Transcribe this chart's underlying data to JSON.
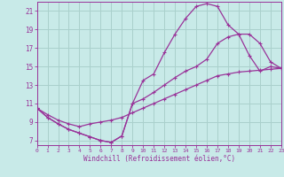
{
  "xlabel": "Windchill (Refroidissement éolien,°C)",
  "bg_color": "#c8eae8",
  "grid_color": "#aad0cc",
  "line_color": "#993399",
  "xlim": [
    0,
    23
  ],
  "ylim": [
    6.5,
    22
  ],
  "xticks": [
    0,
    1,
    2,
    3,
    4,
    5,
    6,
    7,
    8,
    9,
    10,
    11,
    12,
    13,
    14,
    15,
    16,
    17,
    18,
    19,
    20,
    21,
    22,
    23
  ],
  "yticks": [
    7,
    9,
    11,
    13,
    15,
    17,
    19,
    21
  ],
  "curve1_x": [
    0,
    1,
    2,
    3,
    4,
    5,
    6,
    7,
    8,
    9,
    10,
    11,
    12,
    13,
    14,
    15,
    16,
    17,
    18,
    19,
    20,
    21,
    22,
    23
  ],
  "curve1_y": [
    10.5,
    9.5,
    8.8,
    8.2,
    7.8,
    7.4,
    7.0,
    6.8,
    7.5,
    11.0,
    13.5,
    14.2,
    16.5,
    18.5,
    20.2,
    21.5,
    21.8,
    21.5,
    19.5,
    18.5,
    16.2,
    14.5,
    15.0,
    14.8
  ],
  "curve2_x": [
    0,
    1,
    2,
    3,
    4,
    5,
    6,
    7,
    8,
    9,
    10,
    11,
    12,
    13,
    14,
    15,
    16,
    17,
    18,
    19,
    20,
    21,
    22,
    23
  ],
  "curve2_y": [
    10.5,
    9.5,
    8.8,
    8.2,
    7.8,
    7.4,
    7.0,
    6.8,
    7.5,
    11.0,
    11.5,
    12.2,
    13.0,
    13.8,
    14.5,
    15.0,
    15.8,
    17.5,
    18.2,
    18.5,
    18.5,
    17.5,
    15.5,
    14.8
  ],
  "curve3_x": [
    0,
    1,
    2,
    3,
    4,
    5,
    6,
    7,
    8,
    9,
    10,
    11,
    12,
    13,
    14,
    15,
    16,
    17,
    18,
    19,
    20,
    21,
    22,
    23
  ],
  "curve3_y": [
    10.5,
    9.8,
    9.2,
    8.8,
    8.5,
    8.8,
    9.0,
    9.2,
    9.5,
    10.0,
    10.5,
    11.0,
    11.5,
    12.0,
    12.5,
    13.0,
    13.5,
    14.0,
    14.2,
    14.4,
    14.5,
    14.6,
    14.7,
    14.8
  ]
}
